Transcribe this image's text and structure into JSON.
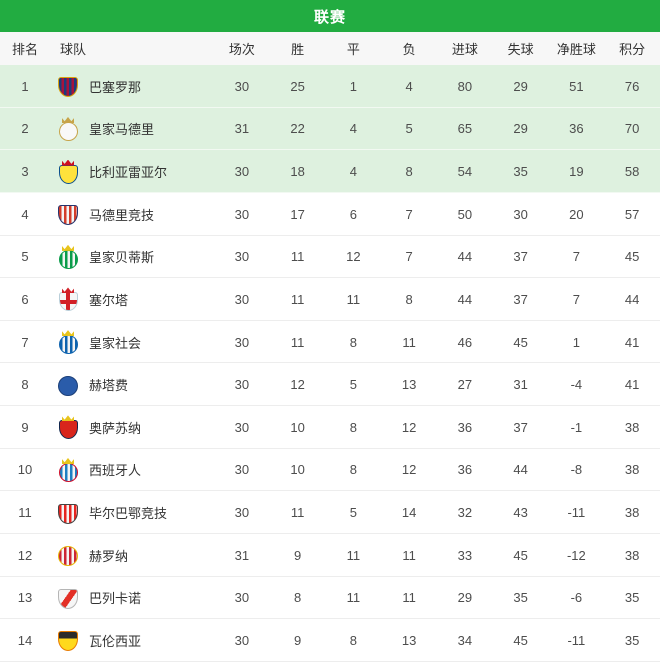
{
  "title": "联赛",
  "colors": {
    "header_green": "#22ac41",
    "row_highlight": "#def1df",
    "header_row_bg": "#f7f7f7",
    "divider": "#ededed",
    "text_dark": "#333333",
    "text_num": "#4d4d4d"
  },
  "table": {
    "columns": [
      {
        "key": "rank",
        "label": "排名"
      },
      {
        "key": "team",
        "label": "球队"
      },
      {
        "key": "played",
        "label": "场次"
      },
      {
        "key": "won",
        "label": "胜"
      },
      {
        "key": "drawn",
        "label": "平"
      },
      {
        "key": "lost",
        "label": "负"
      },
      {
        "key": "goals_for",
        "label": "进球"
      },
      {
        "key": "goals_against",
        "label": "失球"
      },
      {
        "key": "goal_diff",
        "label": "净胜球"
      },
      {
        "key": "points",
        "label": "积分"
      }
    ],
    "rows": [
      {
        "rank": "1",
        "team": "巴塞罗那",
        "highlighted": true,
        "stats": [
          "30",
          "25",
          "1",
          "4",
          "80",
          "29",
          "51",
          "76"
        ],
        "crest": {
          "shape": "shield",
          "pattern": "stripes",
          "colors": [
            "#1d3d7d",
            "#a6133c"
          ],
          "border": "#d9a40e",
          "crown": ""
        }
      },
      {
        "rank": "2",
        "team": "皇家马德里",
        "highlighted": true,
        "stats": [
          "31",
          "22",
          "4",
          "5",
          "65",
          "29",
          "36",
          "70"
        ],
        "crest": {
          "shape": "circle",
          "pattern": "solid",
          "colors": [
            "#f9f9f9"
          ],
          "border": "#c7a44a",
          "crown": "#c7a44a"
        }
      },
      {
        "rank": "3",
        "team": "比利亚雷亚尔",
        "highlighted": true,
        "stats": [
          "30",
          "18",
          "4",
          "8",
          "54",
          "35",
          "19",
          "58"
        ],
        "crest": {
          "shape": "shield",
          "pattern": "solid",
          "colors": [
            "#ffe23c"
          ],
          "border": "#0a4e8c",
          "crown": "#cf1020"
        }
      },
      {
        "rank": "4",
        "team": "马德里竞技",
        "highlighted": false,
        "stats": [
          "30",
          "17",
          "6",
          "7",
          "50",
          "30",
          "20",
          "57"
        ],
        "crest": {
          "shape": "shield",
          "pattern": "stripes",
          "colors": [
            "#d43d2a",
            "#f4f4f4"
          ],
          "border": "#27356e",
          "crown": ""
        }
      },
      {
        "rank": "5",
        "team": "皇家贝蒂斯",
        "highlighted": false,
        "stats": [
          "30",
          "11",
          "12",
          "7",
          "44",
          "37",
          "7",
          "45"
        ],
        "crest": {
          "shape": "circle",
          "pattern": "stripes",
          "colors": [
            "#0b9c4a",
            "#f4f4f4"
          ],
          "border": "#0b9c4a",
          "crown": "#e8c41c"
        }
      },
      {
        "rank": "6",
        "team": "塞尔塔",
        "highlighted": false,
        "stats": [
          "30",
          "11",
          "11",
          "8",
          "44",
          "37",
          "7",
          "44"
        ],
        "crest": {
          "shape": "shield",
          "pattern": "cross",
          "colors": [
            "#f6f6f6",
            "#d22027"
          ],
          "border": "#b9ced9",
          "crown": "#d22027"
        }
      },
      {
        "rank": "7",
        "team": "皇家社会",
        "highlighted": false,
        "stats": [
          "30",
          "11",
          "8",
          "11",
          "46",
          "45",
          "1",
          "41"
        ],
        "crest": {
          "shape": "circle",
          "pattern": "stripes",
          "colors": [
            "#0e63ae",
            "#f4f4f4"
          ],
          "border": "#0e63ae",
          "crown": "#e8c41c"
        }
      },
      {
        "rank": "8",
        "team": "赫塔费",
        "highlighted": false,
        "stats": [
          "30",
          "12",
          "5",
          "13",
          "27",
          "31",
          "-4",
          "41"
        ],
        "crest": {
          "shape": "circle",
          "pattern": "solid",
          "colors": [
            "#2a5caa"
          ],
          "border": "#1c3f78",
          "crown": ""
        }
      },
      {
        "rank": "9",
        "team": "奥萨苏纳",
        "highlighted": false,
        "stats": [
          "30",
          "10",
          "8",
          "12",
          "36",
          "37",
          "-1",
          "38"
        ],
        "crest": {
          "shape": "shield",
          "pattern": "solid",
          "colors": [
            "#d8251c"
          ],
          "border": "#10264d",
          "crown": "#e8c41c"
        }
      },
      {
        "rank": "10",
        "team": "西班牙人",
        "highlighted": false,
        "stats": [
          "30",
          "10",
          "8",
          "12",
          "36",
          "44",
          "-8",
          "38"
        ],
        "crest": {
          "shape": "circle",
          "pattern": "stripes",
          "colors": [
            "#1e7fc2",
            "#f4f4f4"
          ],
          "border": "#d00e2a",
          "crown": "#e8c41c"
        }
      },
      {
        "rank": "11",
        "team": "毕尔巴鄂竞技",
        "highlighted": false,
        "stats": [
          "30",
          "11",
          "5",
          "14",
          "32",
          "43",
          "-11",
          "38"
        ],
        "crest": {
          "shape": "shield",
          "pattern": "stripes",
          "colors": [
            "#e62520",
            "#f4f4f4"
          ],
          "border": "#444444",
          "crown": ""
        }
      },
      {
        "rank": "12",
        "team": "赫罗纳",
        "highlighted": false,
        "stats": [
          "31",
          "9",
          "11",
          "11",
          "33",
          "45",
          "-12",
          "38"
        ],
        "crest": {
          "shape": "circle",
          "pattern": "stripes",
          "colors": [
            "#cd2534",
            "#f4f4f4"
          ],
          "border": "#e8b70a",
          "crown": ""
        }
      },
      {
        "rank": "13",
        "team": "巴列卡诺",
        "highlighted": false,
        "stats": [
          "30",
          "8",
          "11",
          "11",
          "29",
          "35",
          "-6",
          "35"
        ],
        "crest": {
          "shape": "shield",
          "pattern": "diagonal",
          "colors": [
            "#f6f6f6",
            "#e33027"
          ],
          "border": "#b5b5b5",
          "crown": ""
        }
      },
      {
        "rank": "14",
        "team": "瓦伦西亚",
        "highlighted": false,
        "stats": [
          "30",
          "9",
          "8",
          "13",
          "34",
          "45",
          "-11",
          "35"
        ],
        "crest": {
          "shape": "shield",
          "pattern": "half",
          "colors": [
            "#2b2b2b",
            "#ffd91c"
          ],
          "border": "#e87b00",
          "crown": ""
        }
      }
    ]
  }
}
